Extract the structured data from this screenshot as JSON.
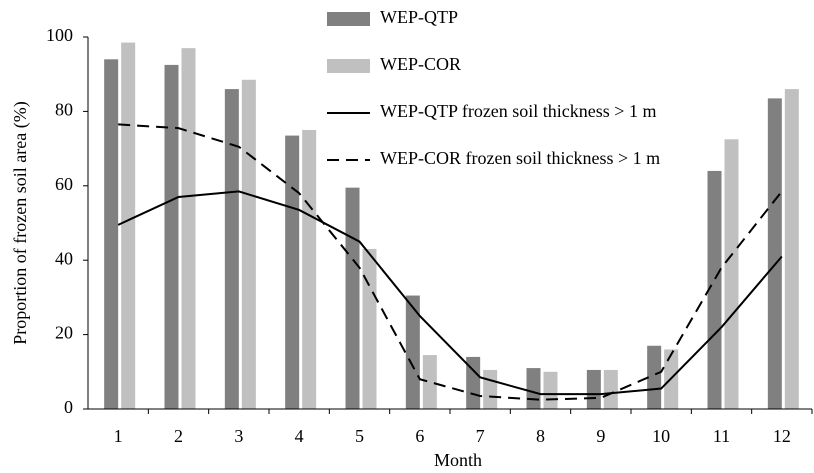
{
  "chart_data": {
    "type": "bar",
    "x_label": "Month",
    "y_label": "Proportion of frozen soil area  (%)",
    "categories": [
      "1",
      "2",
      "3",
      "4",
      "5",
      "6",
      "7",
      "8",
      "9",
      "10",
      "11",
      "12"
    ],
    "series": [
      {
        "name": "WEP-QTP",
        "type": "bar",
        "color": "#808080",
        "values": [
          94,
          92.5,
          86,
          73.5,
          59.5,
          30.5,
          14,
          11,
          10.5,
          17,
          64,
          83.5
        ]
      },
      {
        "name": "WEP-COR",
        "type": "bar",
        "color": "#c0c0c0",
        "values": [
          98.5,
          97,
          88.5,
          75,
          43,
          14.5,
          10.5,
          10,
          10.5,
          16,
          72.5,
          86
        ]
      },
      {
        "name": "WEP-QTP frozen soil thickness > 1 m",
        "type": "line",
        "dash": false,
        "color": "#000000",
        "values": [
          49.5,
          57,
          58.5,
          53.5,
          45,
          25,
          8.5,
          4,
          4,
          5.5,
          22,
          41
        ]
      },
      {
        "name": "WEP-COR frozen soil thickness > 1 m",
        "type": "line",
        "dash": true,
        "color": "#000000",
        "values": [
          76.5,
          75.5,
          70.5,
          58,
          38,
          8,
          3.5,
          2.5,
          3,
          10,
          38,
          58.5
        ]
      }
    ],
    "ylim": [
      0,
      100
    ],
    "yticks": [
      0,
      20,
      40,
      60,
      80,
      100
    ],
    "grid": false
  }
}
